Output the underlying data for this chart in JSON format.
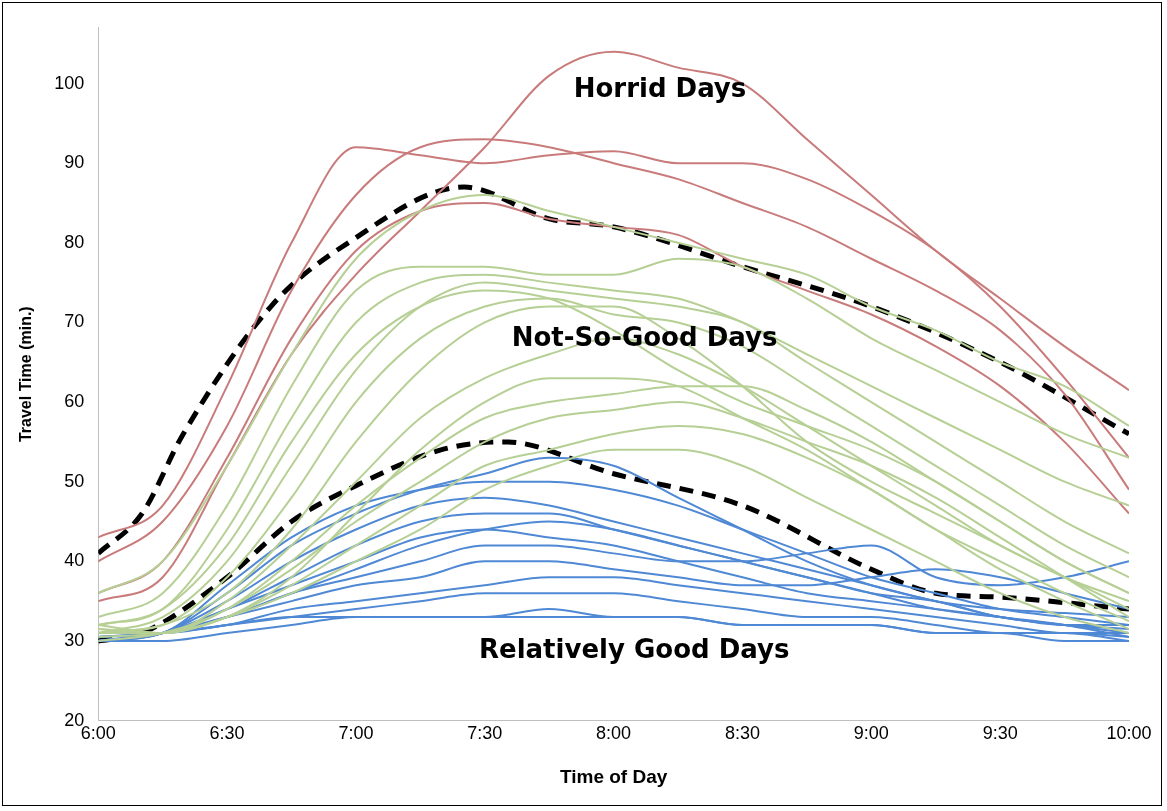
{
  "chart_data": {
    "type": "line",
    "xlabel": "Time of Day",
    "ylabel": "Travel Time (min.)",
    "legend": false,
    "grid": false,
    "marker": "none",
    "line_style": "solid",
    "x": [
      6,
      6.25,
      6.5,
      6.75,
      7,
      7.25,
      7.5,
      7.75,
      8,
      8.25,
      8.5,
      8.75,
      9,
      9.25,
      9.5,
      9.75,
      10
    ],
    "xlim": [
      6,
      10
    ],
    "xticks": [
      {
        "value": 6,
        "label": "6:00"
      },
      {
        "value": 6.5,
        "label": "6:30"
      },
      {
        "value": 7,
        "label": "7:00"
      },
      {
        "value": 7.5,
        "label": "7:30"
      },
      {
        "value": 8,
        "label": "8:00"
      },
      {
        "value": 8.5,
        "label": "8:30"
      },
      {
        "value": 9,
        "label": "9:00"
      },
      {
        "value": 9.5,
        "label": "9:30"
      },
      {
        "value": 10,
        "label": "10:00"
      }
    ],
    "ylim": [
      20,
      107
    ],
    "yticks": [
      20,
      30,
      40,
      50,
      60,
      70,
      80,
      90,
      100
    ],
    "series": [
      {
        "color": "#b6cf94",
        "values": [
          36,
          40,
          52,
          66,
          78,
          84,
          86,
          84,
          82,
          80,
          78,
          76,
          72,
          69,
          65,
          62,
          57
        ]
      },
      {
        "color": "#b6cf94",
        "values": [
          33,
          36,
          47,
          62,
          74,
          77,
          77,
          76,
          76,
          78,
          77,
          73,
          68,
          64,
          60,
          56,
          53
        ]
      },
      {
        "color": "#b6cf94",
        "values": [
          32,
          34,
          44,
          58,
          70,
          75,
          76,
          75,
          74,
          73,
          70,
          66,
          62,
          58,
          54,
          50,
          47
        ]
      },
      {
        "color": "#b6cf94",
        "values": [
          31,
          33,
          40,
          52,
          64,
          72,
          75,
          74,
          73,
          72,
          70,
          65,
          60,
          55,
          50,
          45,
          41
        ]
      },
      {
        "color": "#b6cf94",
        "values": [
          31,
          32,
          38,
          48,
          60,
          68,
          72,
          73,
          71,
          70,
          67,
          62,
          57,
          52,
          47,
          42,
          38
        ]
      },
      {
        "color": "#b6cf94",
        "values": [
          31,
          32,
          36,
          44,
          55,
          64,
          70,
          72,
          72,
          68,
          62,
          55,
          50,
          46,
          42,
          38,
          35
        ]
      },
      {
        "color": "#b6cf94",
        "values": [
          31.5,
          31,
          35,
          42,
          50,
          58,
          63,
          66,
          68,
          66,
          62,
          57,
          52,
          47,
          42,
          38,
          34
        ]
      },
      {
        "color": "#b6cf94",
        "values": [
          30,
          31,
          34,
          40,
          47,
          53,
          58,
          60,
          61,
          62,
          62,
          59,
          55,
          50,
          45,
          40,
          36
        ]
      },
      {
        "color": "#b6cf94",
        "values": [
          31,
          31,
          34,
          39,
          45,
          50,
          55,
          58,
          59,
          60,
          58,
          55,
          52,
          48,
          43,
          38,
          33
        ]
      },
      {
        "color": "#b6cf94",
        "values": [
          31.5,
          31,
          33,
          37,
          42,
          47,
          52,
          54,
          56,
          57,
          56,
          53,
          49,
          44,
          40,
          36,
          32.5
        ]
      },
      {
        "color": "#b6cf94",
        "values": [
          32,
          31,
          33,
          36,
          40,
          44,
          49,
          52,
          54,
          54,
          52,
          48,
          44,
          40,
          36,
          33,
          31
        ]
      },
      {
        "color": "#b6cf94",
        "values": [
          32,
          34,
          42,
          55,
          66,
          72,
          74,
          73,
          69,
          64,
          60,
          57,
          54,
          50,
          45,
          40,
          36
        ]
      },
      {
        "color": "#b6cf94",
        "values": [
          30.5,
          31,
          33,
          38,
          46,
          54,
          60,
          63,
          63,
          62,
          58,
          54,
          49,
          44,
          39,
          35,
          31.5
        ]
      },
      {
        "color": "#4f88d4",
        "values": [
          30,
          31,
          37,
          43,
          47,
          49,
          50,
          50,
          49,
          47,
          44,
          41,
          38,
          36,
          34,
          33,
          32
        ]
      },
      {
        "color": "#4f88d4",
        "values": [
          30,
          31,
          36,
          42,
          46,
          49,
          51,
          53,
          52,
          48,
          44,
          40,
          37,
          35,
          33,
          32,
          31
        ]
      },
      {
        "color": "#4f88d4",
        "values": [
          30,
          31,
          35,
          40,
          44,
          47,
          48,
          47,
          45,
          43,
          41,
          39,
          37,
          35,
          34,
          33.5,
          33
        ]
      },
      {
        "color": "#4f88d4",
        "values": [
          30,
          31,
          34,
          38,
          42,
          45,
          46,
          46,
          44,
          42,
          40,
          38,
          36,
          35,
          33,
          32,
          31.5
        ]
      },
      {
        "color": "#4f88d4",
        "values": [
          30,
          31,
          34,
          37,
          40,
          43,
          44,
          43,
          42,
          40,
          38,
          36,
          35,
          34,
          33,
          32,
          30.5
        ]
      },
      {
        "color": "#4f88d4",
        "values": [
          30,
          31,
          33,
          36,
          38,
          40,
          42,
          42,
          41,
          40,
          40,
          41,
          42,
          38,
          37,
          38,
          40
        ]
      },
      {
        "color": "#4f88d4",
        "values": [
          30,
          31,
          33,
          35,
          37,
          38,
          40,
          40,
          39,
          38,
          37,
          37,
          38,
          39,
          38,
          36,
          34
        ]
      },
      {
        "color": "#4f88d4",
        "values": [
          30.5,
          31,
          32,
          34,
          35,
          36,
          37,
          38,
          38,
          37,
          36,
          35,
          34,
          33,
          32,
          31,
          31
        ]
      },
      {
        "color": "#4f88d4",
        "values": [
          30.5,
          31,
          32,
          33,
          34,
          35,
          36,
          36,
          36,
          35,
          34,
          33,
          33,
          32,
          31,
          31,
          30
        ]
      },
      {
        "color": "#4f88d4",
        "values": [
          30,
          30,
          31,
          32,
          33,
          33,
          33,
          34,
          33,
          33,
          32,
          32,
          32,
          31,
          31,
          30,
          30
        ]
      },
      {
        "color": "#4f88d4",
        "values": [
          30.5,
          31,
          33,
          36,
          39,
          42,
          44,
          45,
          44,
          42,
          40,
          38,
          36,
          34,
          33,
          32,
          32
        ]
      },
      {
        "color": "#4f88d4",
        "values": [
          31,
          31,
          32,
          33,
          33,
          33,
          33,
          33,
          33,
          33,
          32,
          32,
          32,
          31,
          31,
          31,
          30.5
        ]
      },
      {
        "color": "#c97b7b",
        "values": [
          35,
          38,
          52,
          66,
          76,
          84,
          92,
          101,
          104,
          102,
          100,
          93,
          86,
          79,
          73,
          67,
          61.5
        ]
      },
      {
        "color": "#c97b7b",
        "values": [
          43,
          47,
          62,
          80,
          92,
          91,
          90,
          91,
          91.5,
          90,
          90,
          88,
          84,
          79,
          72,
          63,
          53
        ]
      },
      {
        "color": "#c97b7b",
        "values": [
          40,
          45,
          57,
          74,
          86,
          92,
          93,
          92,
          90,
          88,
          85,
          82,
          78,
          74,
          69,
          61,
          49
        ]
      },
      {
        "color": "#c97b7b",
        "values": [
          36,
          40,
          53,
          68,
          79,
          84,
          85,
          83,
          82,
          81,
          77,
          74,
          71,
          67,
          62,
          55,
          46
        ]
      },
      {
        "color": "#000000",
        "line_style": "dashed",
        "x": [
          6,
          6.17,
          6.33,
          6.67,
          6.97,
          7.42,
          7.75,
          8,
          8.5,
          9,
          9.5,
          10
        ],
        "values": [
          41,
          46,
          56,
          72,
          80,
          87,
          83,
          82,
          77,
          72,
          65,
          56
        ]
      },
      {
        "color": "#000000",
        "line_style": "dashed",
        "x": [
          6,
          6.17,
          6.5,
          6.75,
          7,
          7.33,
          7.58,
          8,
          8.5,
          9,
          9.25,
          9.5,
          10
        ],
        "values": [
          30,
          31,
          38,
          45,
          49.5,
          54,
          55,
          51,
          47,
          39,
          36,
          35.5,
          34
        ]
      }
    ],
    "annotations": [
      "Horrid Days",
      "Not-So-Good Days",
      "Relatively Good Days"
    ]
  }
}
